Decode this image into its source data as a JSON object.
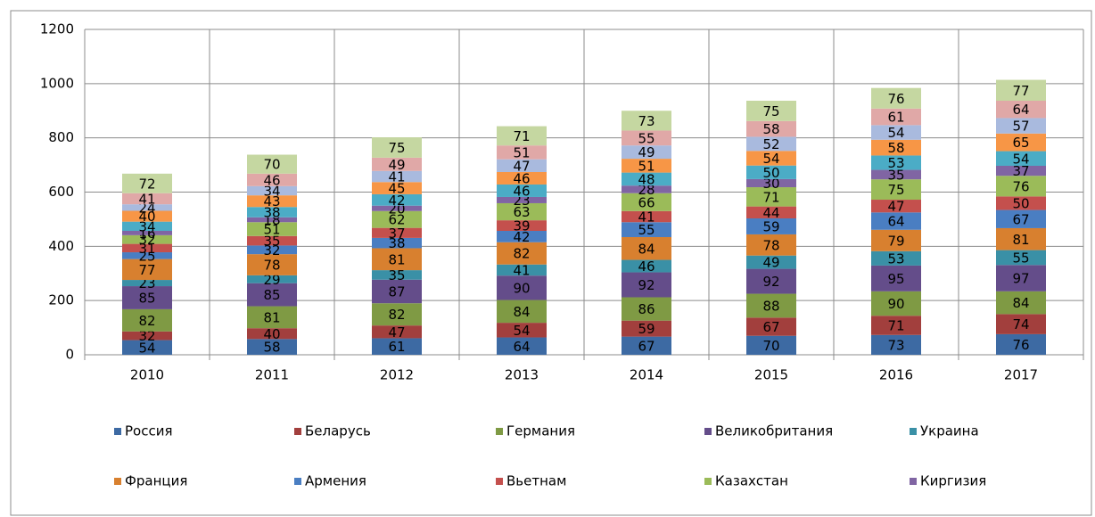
{
  "chart_data": {
    "type": "stacked_bar",
    "categories": [
      "2010",
      "2011",
      "2012",
      "2013",
      "2014",
      "2015",
      "2016",
      "2017"
    ],
    "series": [
      {
        "name": "Россия",
        "color": "#3d6aa3",
        "values": [
          54,
          58,
          61,
          64,
          67,
          70,
          73,
          76
        ]
      },
      {
        "name": "Беларусь",
        "color": "#a23f3d",
        "values": [
          32,
          40,
          47,
          54,
          59,
          67,
          71,
          74
        ]
      },
      {
        "name": "Германия",
        "color": "#7f9a44",
        "values": [
          82,
          81,
          82,
          84,
          86,
          88,
          90,
          84
        ]
      },
      {
        "name": "Великобритания",
        "color": "#644d8a",
        "values": [
          85,
          85,
          87,
          90,
          92,
          92,
          95,
          97
        ]
      },
      {
        "name": "Украина",
        "color": "#3a90a6",
        "values": [
          23,
          29,
          35,
          41,
          46,
          49,
          53,
          55
        ]
      },
      {
        "name": "Франция",
        "color": "#d8802f",
        "values": [
          77,
          78,
          81,
          82,
          84,
          78,
          79,
          81
        ]
      },
      {
        "name": "Армения",
        "color": "#4a7ec2",
        "values": [
          25,
          32,
          38,
          42,
          55,
          59,
          64,
          67
        ]
      },
      {
        "name": "Вьетнам",
        "color": "#c4504d",
        "values": [
          31,
          35,
          37,
          39,
          41,
          44,
          47,
          50
        ]
      },
      {
        "name": "Казахстан",
        "color": "#9bbb59",
        "values": [
          32,
          51,
          62,
          63,
          66,
          71,
          75,
          76
        ]
      },
      {
        "name": "Киргизия",
        "color": "#8065a3",
        "values": [
          16,
          18,
          20,
          23,
          28,
          30,
          35,
          37
        ]
      },
      {
        "color": "#4bacc6",
        "values": [
          34,
          38,
          42,
          46,
          48,
          50,
          53,
          54
        ]
      },
      {
        "color": "#f79646",
        "values": [
          40,
          43,
          45,
          46,
          51,
          54,
          58,
          65
        ]
      },
      {
        "color": "#a9bade",
        "values": [
          24,
          34,
          41,
          47,
          49,
          52,
          54,
          57
        ]
      },
      {
        "color": "#e0a8a7",
        "values": [
          41,
          46,
          49,
          51,
          55,
          58,
          61,
          64
        ]
      },
      {
        "color": "#c5d7a1",
        "values": [
          72,
          70,
          75,
          71,
          73,
          75,
          76,
          77
        ]
      }
    ],
    "ylim": [
      0,
      1200
    ],
    "yticks": [
      0,
      200,
      400,
      600,
      800,
      1000,
      1200
    ],
    "grid": true,
    "legend": "bottom"
  }
}
